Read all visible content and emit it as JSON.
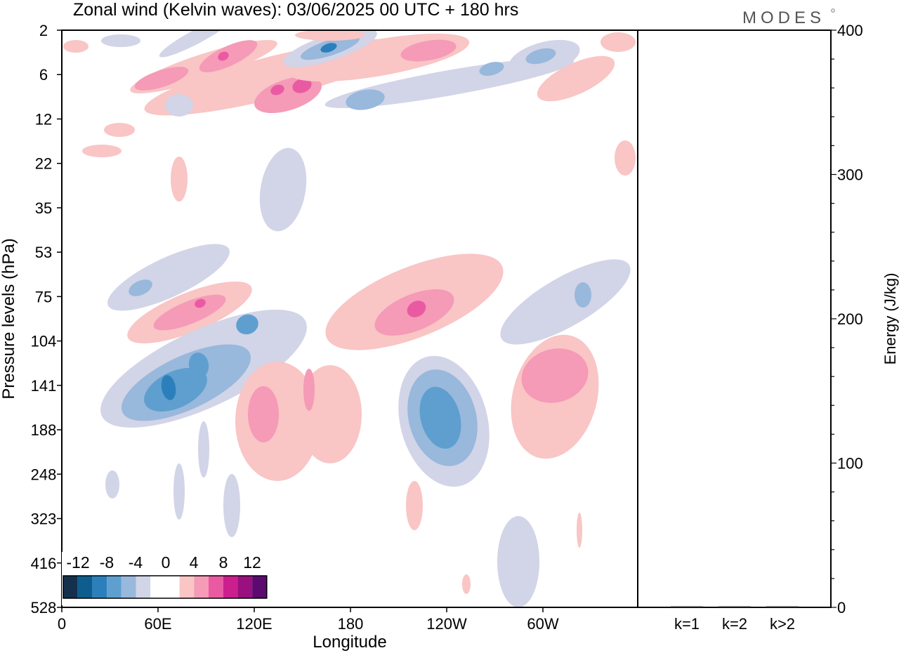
{
  "title": "Zonal wind (Kelvin waves):  03/06/2025  00 UTC  + 180 hrs",
  "logo": "MODES",
  "colors": {
    "blue6": "#15304d",
    "blue5": "#0d5d8f",
    "blue4": "#2b80bb",
    "blue3": "#5e9fcf",
    "blue2": "#98b8dc",
    "blue1": "#d2d4e7",
    "white": "#ffffff",
    "red1": "#f9c5c5",
    "red2": "#f59ab7",
    "red3": "#ea5aa3",
    "red4": "#cc1f8e",
    "red5": "#99107e",
    "red6": "#5c0a70"
  },
  "chart_data": [
    {
      "type": "heatmap",
      "title": "Zonal wind (Kelvin waves):  03/06/2025  00 UTC  + 180 hrs",
      "xlabel": "Longitude",
      "ylabel": "Pressure levels (hPa)",
      "x_ticks": [
        "0",
        "60E",
        "120E",
        "180",
        "120W",
        "60W"
      ],
      "x_range_deg": [
        0,
        360
      ],
      "y_ticks": [
        "2",
        "6",
        "12",
        "22",
        "35",
        "53",
        "75",
        "104",
        "141",
        "188",
        "248",
        "323",
        "416",
        "528"
      ],
      "colorbar": {
        "labels": [
          "-12",
          "-8",
          "-4",
          "0",
          "4",
          "8",
          "12"
        ],
        "levels": [
          -14,
          -12,
          -10,
          -8,
          -6,
          -4,
          -2,
          2,
          4,
          6,
          8,
          10,
          12,
          14
        ]
      },
      "features": [
        {
          "lon": 70,
          "p": "141",
          "value": -10
        },
        {
          "lon": 90,
          "p": "120",
          "value": -10
        },
        {
          "lon": 118,
          "p": "95",
          "value": -6
        },
        {
          "lon": 125,
          "p": "165",
          "value": 4
        },
        {
          "lon": 75,
          "p": "75",
          "value": 6
        },
        {
          "lon": 218,
          "p": "80",
          "value": 8
        },
        {
          "lon": 240,
          "p": "165",
          "value": -8
        },
        {
          "lon": 314,
          "p": "135",
          "value": 4
        },
        {
          "lon": 130,
          "p": "8",
          "value": 6
        },
        {
          "lon": 165,
          "p": "4",
          "value": -8
        },
        {
          "lon": 100,
          "p": "3",
          "value": 6
        },
        {
          "lon": 190,
          "p": "9",
          "value": -4
        }
      ]
    },
    {
      "type": "bar",
      "ylabel": "Energy (J/kg)",
      "categories": [
        "k=1",
        "k=2",
        "k>2"
      ],
      "values": [
        0.3,
        0.5,
        0.4
      ],
      "ylim": [
        0,
        400
      ],
      "y_ticks": [
        "0",
        "100",
        "200",
        "300",
        "400"
      ]
    }
  ]
}
